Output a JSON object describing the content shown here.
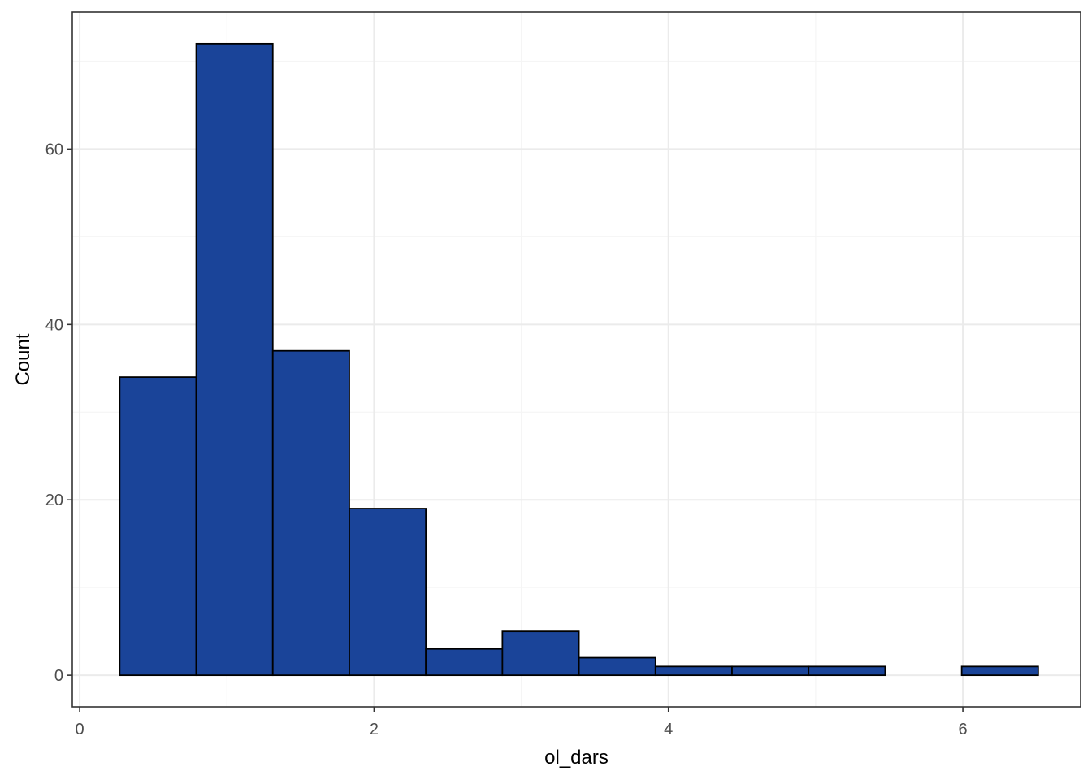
{
  "chart_data": {
    "type": "bar",
    "subtype": "histogram",
    "title": "",
    "xlabel": "ol_dars",
    "ylabel": "Count",
    "xlim": [
      -0.05,
      6.8
    ],
    "ylim": [
      -3.6,
      75.6
    ],
    "x_ticks": [
      0,
      2,
      4,
      6
    ],
    "y_ticks": [
      0,
      20,
      40,
      60
    ],
    "grid": true,
    "legend": "none",
    "bins": [
      {
        "x0": 0.272,
        "x1": 0.792,
        "count": 34
      },
      {
        "x0": 0.792,
        "x1": 1.312,
        "count": 72
      },
      {
        "x0": 1.312,
        "x1": 1.832,
        "count": 37
      },
      {
        "x0": 1.832,
        "x1": 2.352,
        "count": 19
      },
      {
        "x0": 2.352,
        "x1": 2.872,
        "count": 3
      },
      {
        "x0": 2.872,
        "x1": 3.392,
        "count": 5
      },
      {
        "x0": 3.392,
        "x1": 3.912,
        "count": 2
      },
      {
        "x0": 3.912,
        "x1": 4.432,
        "count": 1
      },
      {
        "x0": 4.432,
        "x1": 4.952,
        "count": 1
      },
      {
        "x0": 4.952,
        "x1": 5.472,
        "count": 1
      },
      {
        "x0": 5.472,
        "x1": 5.992,
        "count": 0
      },
      {
        "x0": 5.992,
        "x1": 6.512,
        "count": 1
      }
    ],
    "colors": {
      "bar_fill": "#1a4499",
      "bar_stroke": "#000000",
      "grid_major": "#ebebeb",
      "grid_minor": "#f5f5f5",
      "panel_border": "#333333",
      "axis_text": "#4d4d4d",
      "title_text": "#000000"
    }
  }
}
